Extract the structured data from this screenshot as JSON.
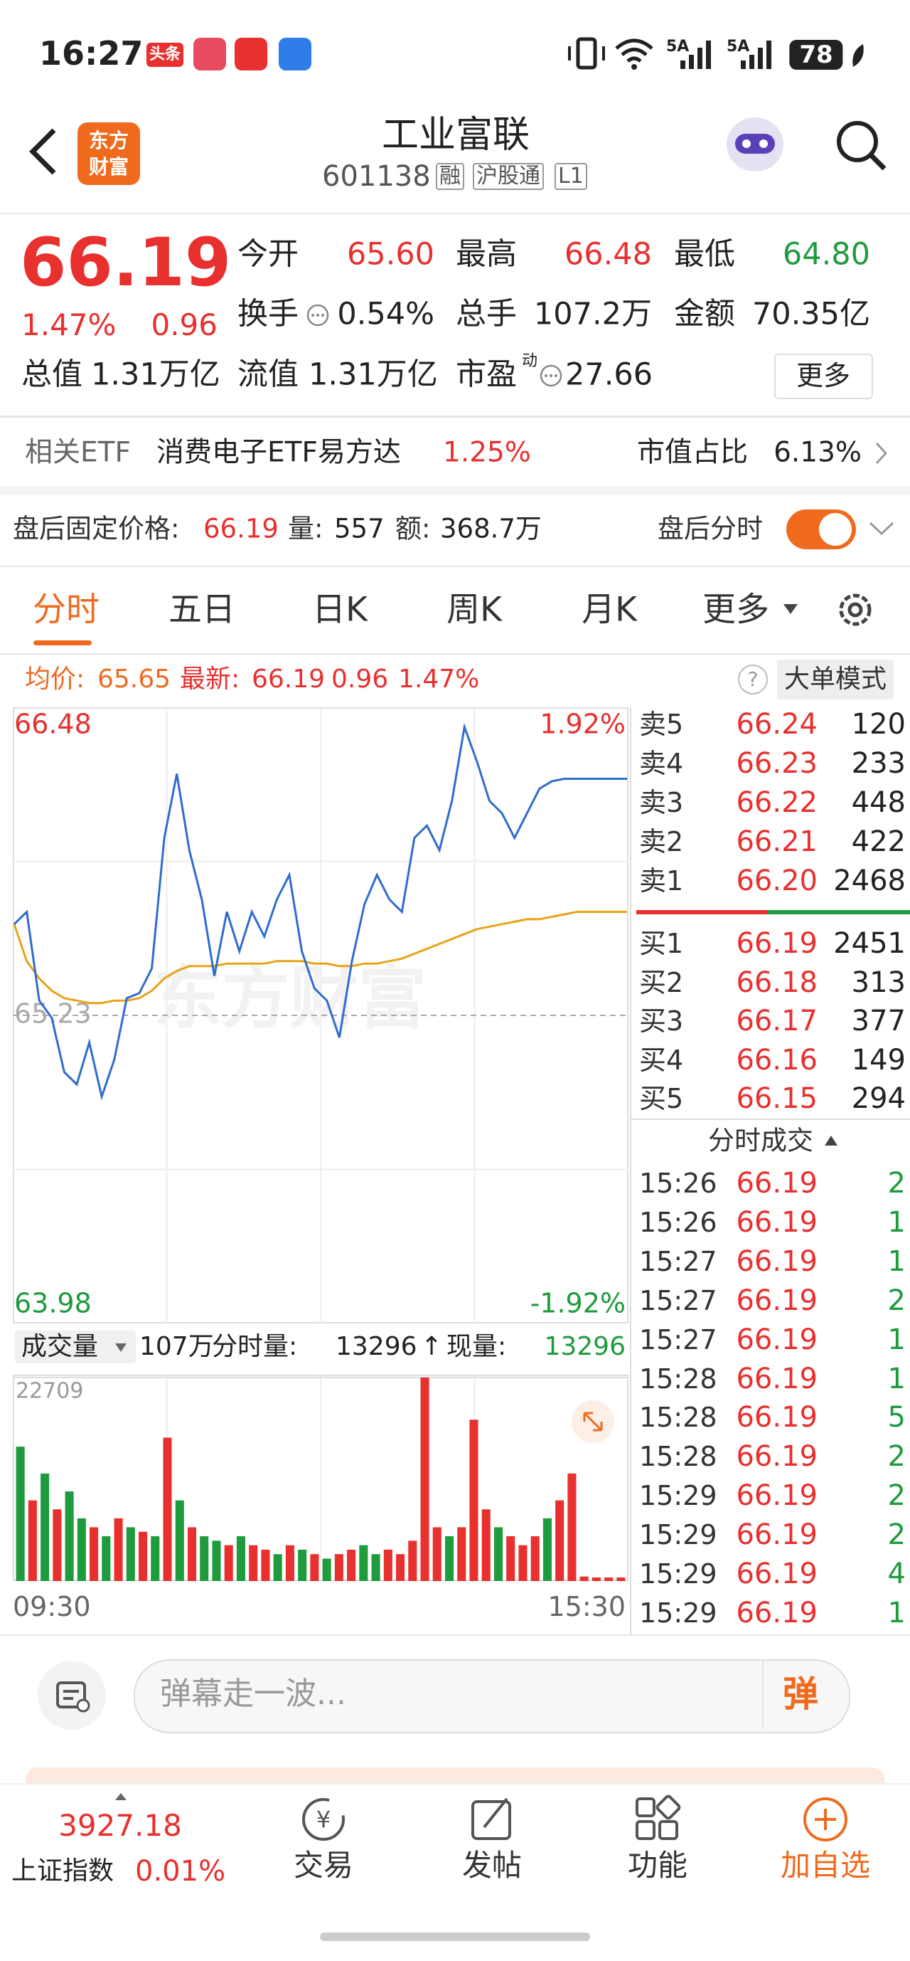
{
  "status_bar": {
    "time": "16:27",
    "badge": "头条",
    "network": [
      "5A",
      "5A"
    ],
    "battery": "78"
  },
  "header": {
    "logo": [
      "东方",
      "财富"
    ],
    "title": "工业富联",
    "code": "601138",
    "tags": [
      "融",
      "沪股通",
      "L1"
    ]
  },
  "quote": {
    "price": "66.19",
    "change_pct": "1.47%",
    "change": "0.96",
    "fields": [
      {
        "label": "今开",
        "value": "65.60"
      },
      {
        "label": "最高",
        "value": "66.48"
      },
      {
        "label": "最低",
        "value": "64.80"
      },
      {
        "label": "换手",
        "value": "0.54%"
      },
      {
        "label": "总手",
        "value": "107.2万"
      },
      {
        "label": "金额",
        "value": "70.35亿"
      },
      {
        "label": "总值",
        "value": "1.31万亿"
      },
      {
        "label": "流值",
        "value": "1.31万亿"
      },
      {
        "label": "市盈",
        "value": "27.66",
        "sup": "动"
      }
    ],
    "more": "更多"
  },
  "etf": {
    "label": "相关ETF",
    "name": "消费电子ETF易方达",
    "pct": "1.25%",
    "ratio_label": "市值占比",
    "ratio": "6.13%"
  },
  "after_hours": {
    "label": "盘后固定价格:",
    "price": "66.19",
    "vol_label": "量:",
    "vol": "557",
    "amt_label": "额:",
    "amt": "368.7万",
    "toggle_label": "盘后分时"
  },
  "tabs": [
    "分时",
    "五日",
    "日K",
    "周K",
    "月K",
    "更多"
  ],
  "chart_info": {
    "avg_label": "均价:",
    "avg": "65.65",
    "latest_label": "最新:",
    "latest": "66.19",
    "change": "0.96",
    "pct": "1.47%",
    "help": "?",
    "mode_button": "大单模式"
  },
  "price_chart": {
    "type": "line",
    "watermark": "东方财富",
    "categories": [
      "09:30",
      null,
      null,
      null,
      null,
      null,
      null,
      null,
      null,
      null,
      null,
      null,
      null,
      null,
      null,
      null,
      null,
      null,
      null,
      null,
      null,
      null,
      null,
      null,
      null,
      null,
      null,
      null,
      null,
      null,
      null,
      null,
      null,
      null,
      null,
      null,
      null,
      null,
      null,
      null,
      null,
      null,
      null,
      null,
      null,
      null,
      null,
      null,
      null,
      "15:30"
    ],
    "series": [
      {
        "color": "#2f6ccf",
        "values": [
          65.6,
          65.65,
          65.29,
          65.22,
          65.0,
          64.95,
          65.12,
          64.9,
          65.05,
          65.3,
          65.32,
          65.42,
          65.95,
          66.21,
          65.9,
          65.7,
          65.39,
          65.65,
          65.49,
          65.65,
          65.55,
          65.7,
          65.8,
          65.49,
          65.34,
          65.29,
          65.14,
          65.45,
          65.68,
          65.8,
          65.7,
          65.65,
          65.95,
          66.0,
          65.9,
          66.1,
          66.4,
          66.26,
          66.1,
          66.05,
          65.95,
          66.05,
          66.15,
          66.18,
          66.19,
          66.19,
          66.19,
          66.19,
          66.19,
          66.19
        ]
      },
      {
        "color": "#e8a317",
        "values": [
          65.6,
          65.45,
          65.38,
          65.33,
          65.3,
          65.29,
          65.28,
          65.28,
          65.29,
          65.29,
          65.3,
          65.33,
          65.38,
          65.41,
          65.43,
          65.43,
          65.43,
          65.44,
          65.44,
          65.44,
          65.44,
          65.45,
          65.45,
          65.45,
          65.44,
          65.44,
          65.43,
          65.43,
          65.44,
          65.44,
          65.45,
          65.46,
          65.48,
          65.5,
          65.52,
          65.54,
          65.56,
          65.58,
          65.59,
          65.6,
          65.61,
          65.62,
          65.62,
          65.63,
          65.64,
          65.65,
          65.65,
          65.65,
          65.65,
          65.65
        ]
      }
    ],
    "ylim": [
      63.98,
      66.48
    ],
    "yticks": [
      63.98,
      65.23,
      66.48
    ],
    "y2lim": [
      -1.92,
      1.92
    ],
    "y2ticks": [
      {
        "value": -1.92,
        "label": "-1.92%"
      },
      {
        "value": 1.92,
        "label": "1.92%"
      }
    ],
    "grid": true
  },
  "volume_header": {
    "selector": "成交量",
    "total": "107万",
    "label": "分时量:",
    "value": "13296",
    "arrow": "↑",
    "now_label": "现量:",
    "now": "13296"
  },
  "volume_chart": {
    "type": "bar",
    "ylim": [
      0,
      22709
    ],
    "yticks": [
      22709
    ],
    "values": [
      15000,
      9000,
      12000,
      8000,
      10000,
      7000,
      6000,
      5000,
      7000,
      6000,
      5500,
      5000,
      16000,
      9000,
      6000,
      5000,
      4500,
      4000,
      5000,
      4000,
      3500,
      3000,
      4000,
      3500,
      3000,
      2500,
      3000,
      3500,
      4000,
      3000,
      3500,
      3000,
      4500,
      22709,
      6000,
      5000,
      6000,
      18000,
      8000,
      6000,
      5000,
      4000,
      5000,
      7000,
      9000,
      12000,
      500,
      400,
      400,
      400
    ],
    "colors": [
      "#1e9b3c",
      "#e8302e",
      "#1e9b3c",
      "#e8302e",
      "#1e9b3c",
      "#1e9b3c",
      "#e8302e",
      "#1e9b3c",
      "#e8302e",
      "#1e9b3c",
      "#e8302e",
      "#1e9b3c",
      "#e8302e",
      "#1e9b3c",
      "#e8302e",
      "#1e9b3c",
      "#1e9b3c",
      "#e8302e",
      "#1e9b3c",
      "#e8302e",
      "#e8302e",
      "#1e9b3c",
      "#e8302e",
      "#1e9b3c",
      "#e8302e",
      "#1e9b3c",
      "#e8302e",
      "#e8302e",
      "#1e9b3c",
      "#1e9b3c",
      "#e8302e",
      "#e8302e",
      "#e8302e",
      "#e8302e",
      "#e8302e",
      "#1e9b3c",
      "#e8302e",
      "#e8302e",
      "#e8302e",
      "#1e9b3c",
      "#e8302e",
      "#e8302e",
      "#e8302e",
      "#1e9b3c",
      "#e8302e",
      "#e8302e",
      "#e8302e",
      "#e8302e",
      "#e8302e",
      "#e8302e"
    ]
  },
  "order_book": {
    "asks": [
      {
        "label": "卖5",
        "price": "66.24",
        "vol": "120"
      },
      {
        "label": "卖4",
        "price": "66.23",
        "vol": "233"
      },
      {
        "label": "卖3",
        "price": "66.22",
        "vol": "448"
      },
      {
        "label": "卖2",
        "price": "66.21",
        "vol": "422"
      },
      {
        "label": "卖1",
        "price": "66.20",
        "vol": "2468"
      }
    ],
    "bids": [
      {
        "label": "买1",
        "price": "66.19",
        "vol": "2451"
      },
      {
        "label": "买2",
        "price": "66.18",
        "vol": "313"
      },
      {
        "label": "买3",
        "price": "66.17",
        "vol": "377"
      },
      {
        "label": "买4",
        "price": "66.16",
        "vol": "149"
      },
      {
        "label": "买5",
        "price": "66.15",
        "vol": "294"
      }
    ]
  },
  "trades": {
    "title": "分时成交",
    "rows": [
      [
        "15:26",
        "66.19",
        "2"
      ],
      [
        "15:26",
        "66.19",
        "1"
      ],
      [
        "15:27",
        "66.19",
        "1"
      ],
      [
        "15:27",
        "66.19",
        "2"
      ],
      [
        "15:27",
        "66.19",
        "1"
      ],
      [
        "15:28",
        "66.19",
        "1"
      ],
      [
        "15:28",
        "66.19",
        "5"
      ],
      [
        "15:28",
        "66.19",
        "2"
      ],
      [
        "15:29",
        "66.19",
        "2"
      ],
      [
        "15:29",
        "66.19",
        "2"
      ],
      [
        "15:29",
        "66.19",
        "4"
      ],
      [
        "15:29",
        "66.19",
        "1"
      ]
    ]
  },
  "comment_bar": {
    "placeholder": "弹幕走一波...",
    "button": "弹"
  },
  "bottom_nav": {
    "index_value": "3927.18",
    "index_name": "上证指数",
    "index_pct": "0.01%",
    "items": [
      "交易",
      "发帖",
      "功能",
      "加自选"
    ]
  }
}
